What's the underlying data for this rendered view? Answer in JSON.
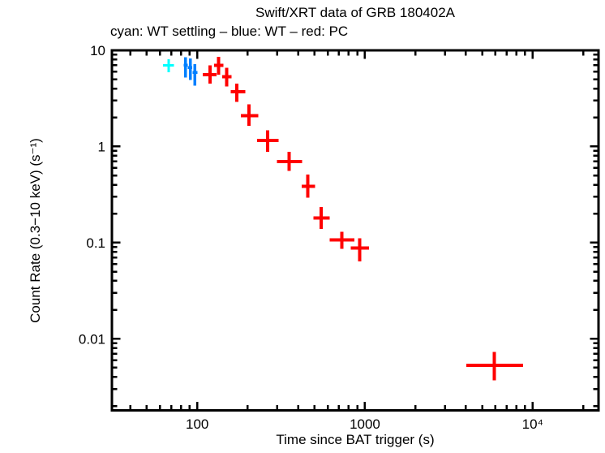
{
  "header": {
    "title": "Swift/XRT data of GRB 180402A",
    "subtitle": "cyan: WT settling – blue: WT – red: PC"
  },
  "axes": {
    "x": {
      "label": "Time since BAT trigger (s)"
    },
    "y": {
      "label": "Count Rate (0.3−10 keV) (s⁻¹)"
    }
  },
  "chart_data": {
    "type": "scatter",
    "title": "Swift/XRT data of GRB 180402A",
    "subtitle": "cyan: WT settling – blue: WT – red: PC",
    "xlabel": "Time since BAT trigger (s)",
    "ylabel": "Count Rate (0.3−10 keV) (s⁻¹)",
    "x_scale": "log",
    "y_scale": "log",
    "xlim": [
      31,
      24700
    ],
    "ylim": [
      0.0018,
      10
    ],
    "grid": false,
    "legend": "in subtitle text",
    "x_ticks": [
      {
        "value": 100,
        "label": "100"
      },
      {
        "value": 1000,
        "label": "1000"
      },
      {
        "value": 10000,
        "label": "10⁴"
      }
    ],
    "y_ticks": [
      {
        "value": 10,
        "label": "10"
      },
      {
        "value": 1,
        "label": "1"
      },
      {
        "value": 0.1,
        "label": "0.1"
      },
      {
        "value": 0.01,
        "label": "0.01"
      }
    ],
    "series": [
      {
        "name": "WT settling",
        "color": "#00ffff",
        "line_width": 3,
        "points": [
          {
            "t": 67.5,
            "t_lo": 62.6,
            "t_hi": 72.6,
            "rate": 7.0,
            "rate_lo": 5.9,
            "rate_hi": 8.1
          }
        ]
      },
      {
        "name": "WT",
        "color": "#0080ff",
        "line_width": 3.5,
        "points": [
          {
            "t": 85.3,
            "t_lo": 83.0,
            "t_hi": 88.0,
            "rate": 7.0,
            "rate_lo": 5.2,
            "rate_hi": 8.5
          },
          {
            "t": 90.8,
            "t_lo": 88.0,
            "t_hi": 93.5,
            "rate": 6.6,
            "rate_lo": 4.9,
            "rate_hi": 8.2
          },
          {
            "t": 97.0,
            "t_lo": 94.0,
            "t_hi": 100.4,
            "rate": 5.9,
            "rate_lo": 4.3,
            "rate_hi": 7.2
          }
        ]
      },
      {
        "name": "PC",
        "color": "#ff0000",
        "line_width": 4,
        "points": [
          {
            "t": 119,
            "t_lo": 108,
            "t_hi": 130,
            "rate": 5.6,
            "rate_lo": 4.5,
            "rate_hi": 7.0
          },
          {
            "t": 134,
            "t_lo": 126,
            "t_hi": 143,
            "rate": 7.0,
            "rate_lo": 5.6,
            "rate_hi": 8.6
          },
          {
            "t": 150,
            "t_lo": 141,
            "t_hi": 160,
            "rate": 5.3,
            "rate_lo": 4.2,
            "rate_hi": 6.6
          },
          {
            "t": 172,
            "t_lo": 158,
            "t_hi": 194,
            "rate": 3.7,
            "rate_lo": 2.9,
            "rate_hi": 4.5
          },
          {
            "t": 204,
            "t_lo": 182,
            "t_hi": 231,
            "rate": 2.1,
            "rate_lo": 1.64,
            "rate_hi": 2.75
          },
          {
            "t": 263,
            "t_lo": 227,
            "t_hi": 305,
            "rate": 1.16,
            "rate_lo": 0.88,
            "rate_hi": 1.48
          },
          {
            "t": 354,
            "t_lo": 299,
            "t_hi": 421,
            "rate": 0.7,
            "rate_lo": 0.56,
            "rate_hi": 0.88
          },
          {
            "t": 456,
            "t_lo": 419,
            "t_hi": 503,
            "rate": 0.385,
            "rate_lo": 0.294,
            "rate_hi": 0.51
          },
          {
            "t": 548,
            "t_lo": 494,
            "t_hi": 617,
            "rate": 0.18,
            "rate_lo": 0.139,
            "rate_hi": 0.234
          },
          {
            "t": 730,
            "t_lo": 617,
            "t_hi": 863,
            "rate": 0.107,
            "rate_lo": 0.086,
            "rate_hi": 0.13
          },
          {
            "t": 928,
            "t_lo": 825,
            "t_hi": 1057,
            "rate": 0.088,
            "rate_lo": 0.064,
            "rate_hi": 0.111
          },
          {
            "t": 5900,
            "t_lo": 4020,
            "t_hi": 8750,
            "rate": 0.0053,
            "rate_lo": 0.0037,
            "rate_hi": 0.0073
          }
        ]
      }
    ]
  }
}
